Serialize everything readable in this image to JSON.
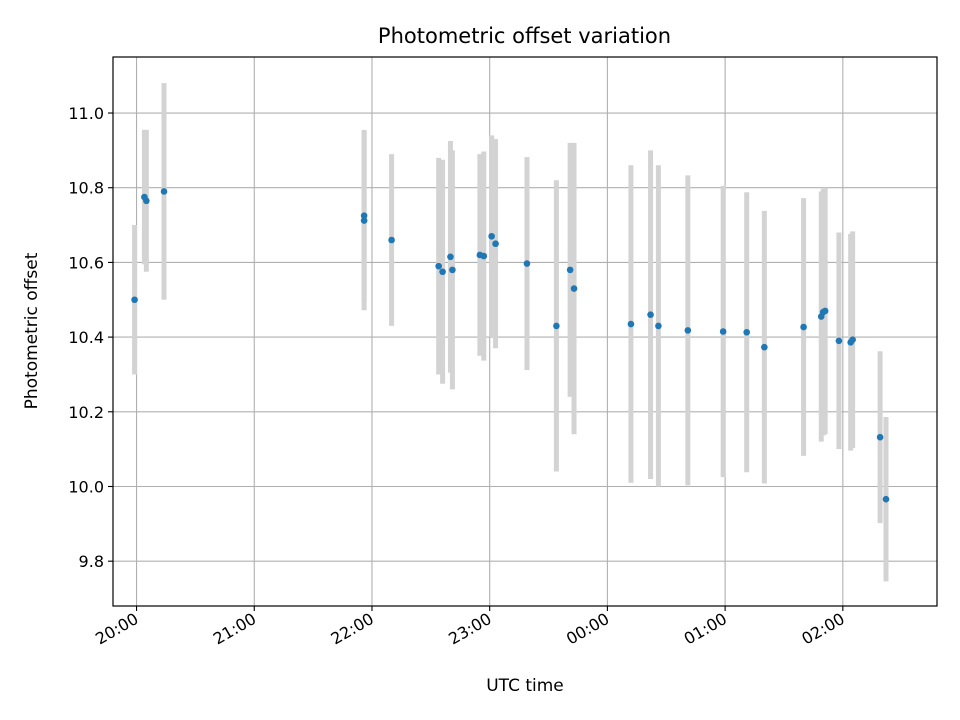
{
  "chart_data": {
    "type": "scatter",
    "title": "Photometric offset variation",
    "xlabel": "UTC time",
    "ylabel": "Photometric offset",
    "x_is_time": true,
    "xlim": [
      "19:48",
      "02:48"
    ],
    "ylim": [
      9.68,
      11.15
    ],
    "x_ticks": [
      "20:00",
      "21:00",
      "22:00",
      "23:00",
      "00:00",
      "01:00",
      "02:00"
    ],
    "y_ticks": [
      "9.8",
      "10.0",
      "10.2",
      "10.4",
      "10.6",
      "10.8",
      "11.0"
    ],
    "grid": true,
    "point_color": "#1f77b4",
    "errorbar_color": "#d3d3d3",
    "points": [
      {
        "x": "19:59",
        "y": 10.5,
        "err": 0.2
      },
      {
        "x": "20:04",
        "y": 10.775,
        "err": 0.18
      },
      {
        "x": "20:05",
        "y": 10.765,
        "err": 0.19
      },
      {
        "x": "20:14",
        "y": 10.79,
        "err": 0.29
      },
      {
        "x": "21:56",
        "y": 10.725,
        "err": 0.23
      },
      {
        "x": "21:56",
        "y": 10.712,
        "err": 0.24
      },
      {
        "x": "22:10",
        "y": 10.66,
        "err": 0.23
      },
      {
        "x": "22:34",
        "y": 10.59,
        "err": 0.29
      },
      {
        "x": "22:36",
        "y": 10.575,
        "err": 0.3
      },
      {
        "x": "22:40",
        "y": 10.615,
        "err": 0.31
      },
      {
        "x": "22:41",
        "y": 10.58,
        "err": 0.32
      },
      {
        "x": "22:55",
        "y": 10.62,
        "err": 0.27
      },
      {
        "x": "22:57",
        "y": 10.617,
        "err": 0.28
      },
      {
        "x": "23:01",
        "y": 10.67,
        "err": 0.27
      },
      {
        "x": "23:03",
        "y": 10.65,
        "err": 0.28
      },
      {
        "x": "23:19",
        "y": 10.597,
        "err": 0.285
      },
      {
        "x": "23:34",
        "y": 10.43,
        "err": 0.39
      },
      {
        "x": "23:41",
        "y": 10.58,
        "err": 0.34
      },
      {
        "x": "23:43",
        "y": 10.53,
        "err": 0.39
      },
      {
        "x": "00:12",
        "y": 10.435,
        "err": 0.425
      },
      {
        "x": "00:22",
        "y": 10.46,
        "err": 0.44
      },
      {
        "x": "00:26",
        "y": 10.43,
        "err": 0.43
      },
      {
        "x": "00:41",
        "y": 10.418,
        "err": 0.415
      },
      {
        "x": "00:59",
        "y": 10.415,
        "err": 0.39
      },
      {
        "x": "01:11",
        "y": 10.413,
        "err": 0.375
      },
      {
        "x": "01:20",
        "y": 10.373,
        "err": 0.365
      },
      {
        "x": "01:40",
        "y": 10.427,
        "err": 0.345
      },
      {
        "x": "01:49",
        "y": 10.455,
        "err": 0.335
      },
      {
        "x": "01:50",
        "y": 10.467,
        "err": 0.33
      },
      {
        "x": "01:51",
        "y": 10.47,
        "err": 0.33
      },
      {
        "x": "01:58",
        "y": 10.39,
        "err": 0.29
      },
      {
        "x": "02:04",
        "y": 10.386,
        "err": 0.29
      },
      {
        "x": "02:05",
        "y": 10.393,
        "err": 0.29
      },
      {
        "x": "02:19",
        "y": 10.132,
        "err": 0.23
      },
      {
        "x": "02:22",
        "y": 9.966,
        "err": 0.22
      }
    ]
  }
}
